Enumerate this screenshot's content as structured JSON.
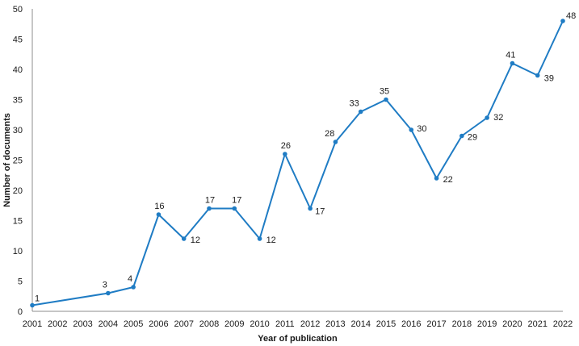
{
  "chart_data": {
    "type": "line",
    "title": "",
    "xlabel": "Year of publication",
    "ylabel": "Number of documents",
    "ylim": [
      0,
      50
    ],
    "y_ticks": [
      0,
      5,
      10,
      15,
      20,
      25,
      30,
      35,
      40,
      45,
      50
    ],
    "x_ticks": [
      "2001",
      "2002",
      "2003",
      "2004",
      "2005",
      "2006",
      "2007",
      "2008",
      "2009",
      "2010",
      "2011",
      "2012",
      "2013",
      "2014",
      "2015",
      "2016",
      "2017",
      "2018",
      "2019",
      "2020",
      "2021",
      "2022"
    ],
    "grid": false,
    "legend": "none",
    "series": [
      {
        "color": "#1f7cc4",
        "points": [
          {
            "x": "2001",
            "y": 1,
            "label": "1"
          },
          {
            "x": "2004",
            "y": 3,
            "label": "3"
          },
          {
            "x": "2005",
            "y": 4,
            "label": "4"
          },
          {
            "x": "2006",
            "y": 16,
            "label": "16"
          },
          {
            "x": "2007",
            "y": 12,
            "label": "12"
          },
          {
            "x": "2008",
            "y": 17,
            "label": "17"
          },
          {
            "x": "2009",
            "y": 17,
            "label": "17"
          },
          {
            "x": "2010",
            "y": 12,
            "label": "12"
          },
          {
            "x": "2011",
            "y": 26,
            "label": "26"
          },
          {
            "x": "2012",
            "y": 17,
            "label": "17"
          },
          {
            "x": "2013",
            "y": 28,
            "label": "28"
          },
          {
            "x": "2014",
            "y": 33,
            "label": "33"
          },
          {
            "x": "2015",
            "y": 35,
            "label": "35"
          },
          {
            "x": "2016",
            "y": 30,
            "label": "30"
          },
          {
            "x": "2017",
            "y": 22,
            "label": "22"
          },
          {
            "x": "2018",
            "y": 29,
            "label": "29"
          },
          {
            "x": "2019",
            "y": 32,
            "label": "32"
          },
          {
            "x": "2020",
            "y": 41,
            "label": "41"
          },
          {
            "x": "2021",
            "y": 39,
            "label": "39"
          },
          {
            "x": "2022",
            "y": 48,
            "label": "48"
          }
        ]
      }
    ]
  }
}
